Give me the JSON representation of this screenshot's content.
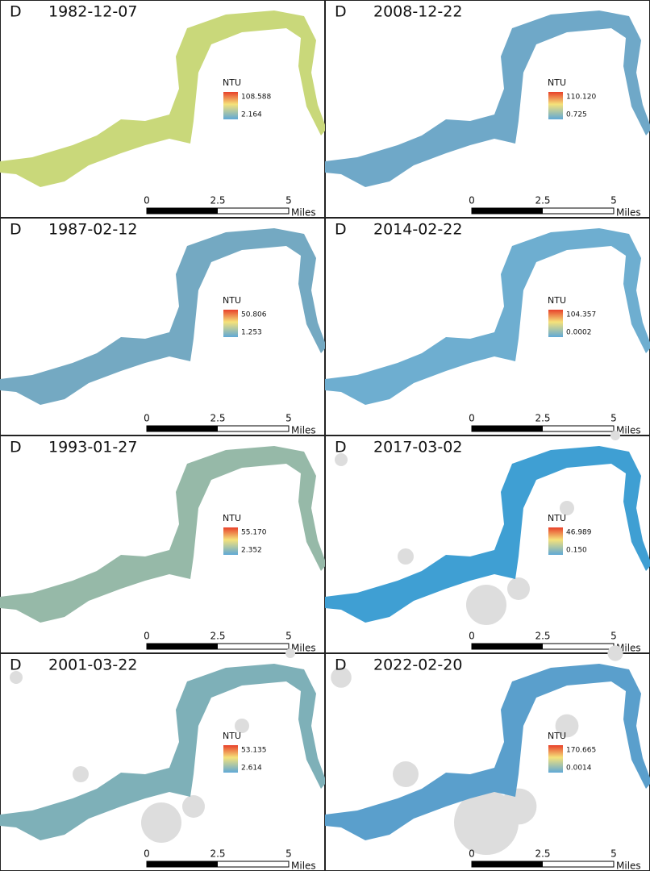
{
  "panels": [
    {
      "label": "D",
      "date": "1982-12-07",
      "legend": {
        "title": "NTU",
        "max": "108.588",
        "min": "2.164"
      },
      "scale": {
        "ticks": [
          "0",
          "2.5",
          "5"
        ],
        "unit": "Miles"
      },
      "river_color": "#c9d87a"
    },
    {
      "label": "D",
      "date": "2008-12-22",
      "legend": {
        "title": "NTU",
        "max": "110.120",
        "min": "0.725"
      },
      "scale": {
        "ticks": [
          "0",
          "2.5",
          "5"
        ],
        "unit": "Miles"
      },
      "river_color": "#6fa8c8"
    },
    {
      "label": "D",
      "date": "1987-02-12",
      "legend": {
        "title": "NTU",
        "max": "50.806",
        "min": "1.253"
      },
      "scale": {
        "ticks": [
          "0",
          "2.5",
          "5"
        ],
        "unit": "Miles"
      },
      "river_color": "#74a9c2"
    },
    {
      "label": "D",
      "date": "2014-02-22",
      "legend": {
        "title": "NTU",
        "max": "104.357",
        "min": "0.0002"
      },
      "scale": {
        "ticks": [
          "0",
          "2.5",
          "5"
        ],
        "unit": "Miles"
      },
      "river_color": "#6eaed0"
    },
    {
      "label": "D",
      "date": "1993-01-27",
      "legend": {
        "title": "NTU",
        "max": "55.170",
        "min": "2.352"
      },
      "scale": {
        "ticks": [
          "0",
          "2.5",
          "5"
        ],
        "unit": "Miles"
      },
      "river_color": "#96b9a8"
    },
    {
      "label": "D",
      "date": "2017-03-02",
      "legend": {
        "title": "NTU",
        "max": "46.989",
        "min": "0.150"
      },
      "scale": {
        "ticks": [
          "0",
          "2.5",
          "5"
        ],
        "unit": "Miles"
      },
      "river_color": "#3f9fd3"
    },
    {
      "label": "D",
      "date": "2001-03-22",
      "legend": {
        "title": "NTU",
        "max": "53.135",
        "min": "2.614"
      },
      "scale": {
        "ticks": [
          "0",
          "2.5",
          "5"
        ],
        "unit": "Miles"
      },
      "river_color": "#7eb0b8"
    },
    {
      "label": "D",
      "date": "2022-02-20",
      "legend": {
        "title": "NTU",
        "max": "170.665",
        "min": "0.0014"
      },
      "scale": {
        "ticks": [
          "0",
          "2.5",
          "5"
        ],
        "unit": "Miles"
      },
      "river_color": "#5a9fcc"
    }
  ]
}
